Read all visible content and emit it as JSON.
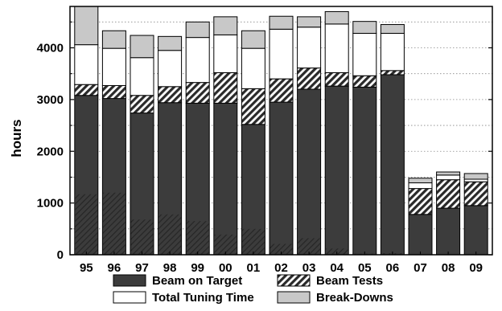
{
  "chart_data": {
    "type": "bar",
    "stacked": true,
    "title": "",
    "xlabel": "",
    "ylabel": "hours",
    "ylim": [
      0,
      4800
    ],
    "yticks": [
      0,
      1000,
      2000,
      3000,
      4000
    ],
    "grid": "horizontal dotted",
    "legend_position": "bottom",
    "categories": [
      "95",
      "96",
      "97",
      "98",
      "99",
      "00",
      "01",
      "02",
      "03",
      "04",
      "05",
      "06",
      "07",
      "08",
      "09"
    ],
    "series": [
      {
        "name": "Beam on Target",
        "color": "#3c3c3c",
        "pattern": "solid",
        "values": [
          3080,
          3020,
          2740,
          2940,
          2930,
          2930,
          2520,
          2950,
          3200,
          3260,
          3240,
          3480,
          780,
          900,
          950
        ]
      },
      {
        "name": "Beam Tests",
        "color": "#3c3c3c",
        "pattern": "diagonal-hatch",
        "values": [
          210,
          250,
          340,
          310,
          400,
          590,
          690,
          450,
          410,
          260,
          220,
          80,
          500,
          550,
          460
        ]
      },
      {
        "name": "Total Tuning Time",
        "color": "#ffffff",
        "pattern": "solid",
        "values": [
          770,
          720,
          730,
          700,
          870,
          730,
          780,
          960,
          790,
          940,
          820,
          720,
          110,
          90,
          50
        ]
      },
      {
        "name": "Break-Downs",
        "color": "#c8c8c8",
        "pattern": "solid",
        "values": [
          740,
          340,
          430,
          270,
          300,
          350,
          340,
          250,
          200,
          240,
          230,
          170,
          90,
          60,
          110
        ]
      }
    ],
    "beam_on_target_hatched_portion": [
      1170,
      1200,
      680,
      780,
      650,
      390,
      500,
      210,
      320,
      120,
      20,
      30,
      0,
      0,
      0
    ]
  }
}
